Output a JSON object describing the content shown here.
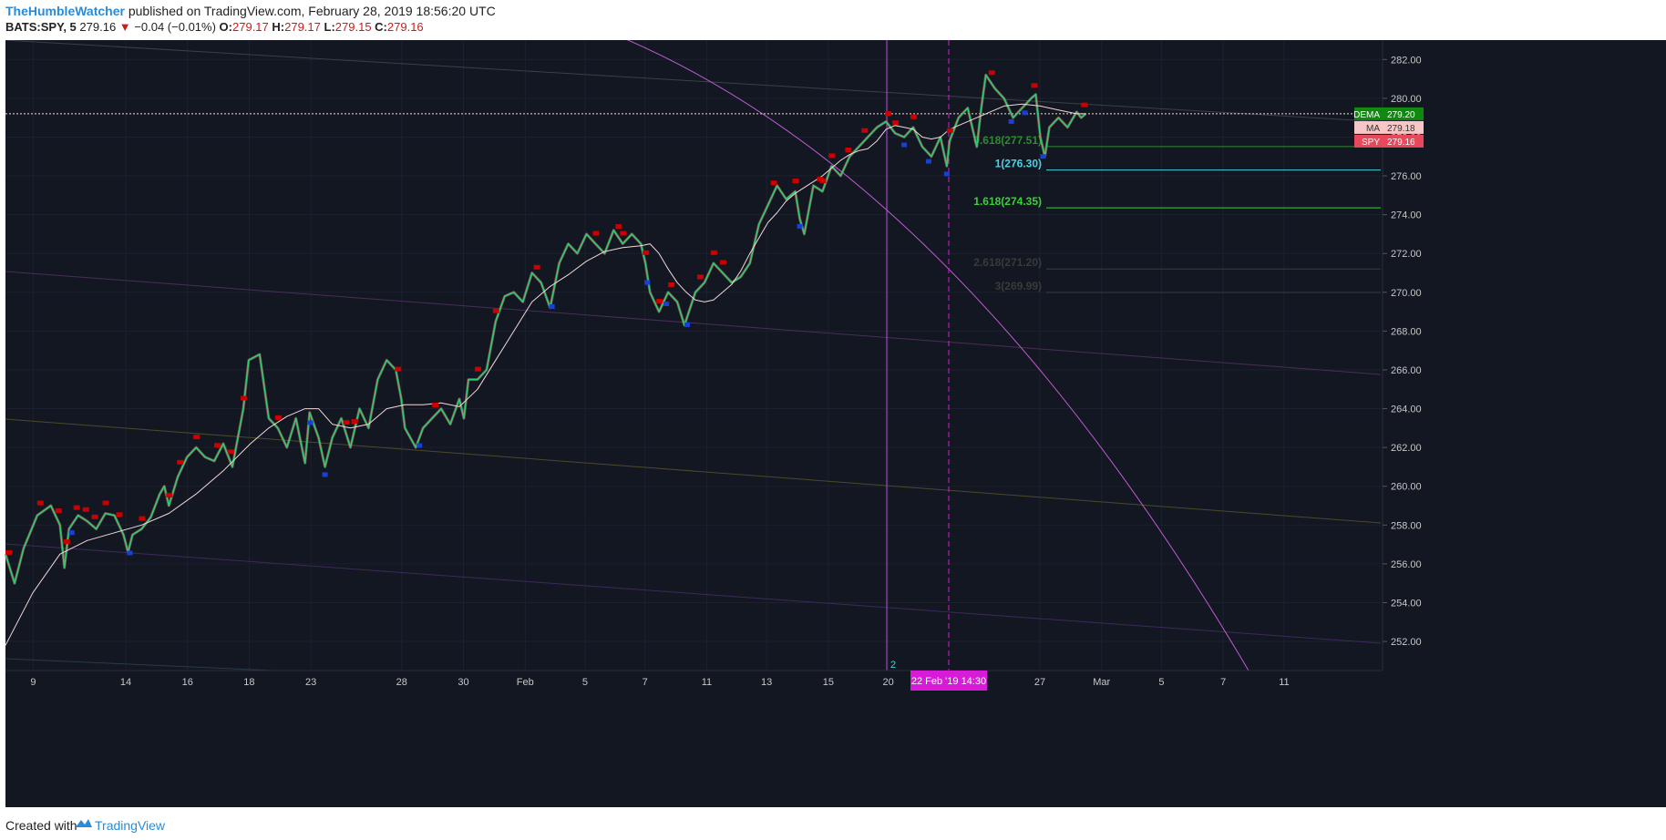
{
  "header": {
    "author": "TheHumbleWatcher",
    "published_text": "published on TradingView.com, February 28, 2019 18:56:20 UTC",
    "symbol": "BATS:SPY, 5",
    "last": "279.16",
    "change": "−0.04 (−0.01%)",
    "open_label": "O:",
    "open": "279.17",
    "high_label": "H:",
    "high": "279.17",
    "low_label": "L:",
    "low": "279.15",
    "close_label": "C:",
    "close": "279.16"
  },
  "footer": {
    "created_with": "Created with",
    "brand": "TradingView"
  },
  "colors": {
    "background": "#131722",
    "price_up": "#2ecc71",
    "price_down": "#e57373",
    "ma_line": "#f2d8d8",
    "dema_badge": "#0f8a0f",
    "ma_badge": "#f7c6c6",
    "spy_badge": "#e8495a",
    "fib_0618": "#2e8b2e",
    "fib_1": "#4dd0e1",
    "fib_1618": "#3ad03a",
    "fib_2618": "#3a3a3a",
    "fib_3": "#3a3a3a",
    "vertical_line": "#b84fd6",
    "curve": "#c05bd6",
    "date_highlight": "#d81bd8",
    "top_marker": "#cc0000",
    "bottom_marker": "#1a3fd6"
  },
  "chart_data": {
    "type": "line",
    "symbol": "BATS:SPY",
    "interval": "5",
    "ylim": [
      250.5,
      283.0
    ],
    "y_ticks": [
      "282.00",
      "280.00",
      "278.00",
      "276.00",
      "274.00",
      "272.00",
      "270.00",
      "268.00",
      "266.00",
      "264.00",
      "262.00",
      "260.00",
      "258.00",
      "256.00",
      "254.00",
      "252.00"
    ],
    "x_ticks": [
      {
        "label": "9",
        "t": 30.5
      },
      {
        "label": "14",
        "t": 132.5
      },
      {
        "label": "16",
        "t": 200.5
      },
      {
        "label": "18",
        "t": 268.5
      },
      {
        "label": "23",
        "t": 336.5
      },
      {
        "label": "28",
        "t": 436.5
      },
      {
        "label": "30",
        "t": 504.5
      },
      {
        "label": "Feb",
        "t": 572.5
      },
      {
        "label": "5",
        "t": 638.5
      },
      {
        "label": "7",
        "t": 704.5
      },
      {
        "label": "11",
        "t": 772.5
      },
      {
        "label": "13",
        "t": 838.5
      },
      {
        "label": "15",
        "t": 906.5
      },
      {
        "label": "20",
        "t": 972.5
      },
      {
        "label": "27",
        "t": 1139.5
      },
      {
        "label": "Mar",
        "t": 1207.5
      },
      {
        "label": "5",
        "t": 1273.5
      },
      {
        "label": "7",
        "t": 1341.5
      },
      {
        "label": "11",
        "t": 1408.5
      }
    ],
    "x_domain": [
      0,
      1515
    ],
    "series": [
      {
        "name": "SPY",
        "values_t": [
          0,
          10,
          20,
          35,
          50,
          60,
          65,
          70,
          80,
          90,
          100,
          110,
          120,
          130,
          135,
          140,
          150,
          160,
          170,
          175,
          180,
          190,
          200,
          210,
          220,
          230,
          240,
          250,
          262,
          268,
          280,
          290,
          300,
          310,
          320,
          330,
          335,
          345,
          352,
          360,
          370,
          380,
          390,
          400,
          410,
          420,
          430,
          436,
          440,
          452,
          460,
          470,
          480,
          490,
          500,
          505,
          510,
          520,
          530,
          540,
          550,
          560,
          570,
          580,
          590,
          600,
          610,
          620,
          630,
          640,
          650,
          660,
          670,
          680,
          690,
          700,
          705,
          710,
          720,
          730,
          740,
          748,
          760,
          770,
          780,
          790,
          800,
          810,
          820,
          830,
          840,
          850,
          860,
          870,
          875,
          880,
          890,
          900,
          910,
          920,
          930,
          940,
          950,
          960,
          970,
          980,
          990,
          1000,
          1010,
          1020,
          1030,
          1037,
          1040,
          1050,
          1060,
          1070,
          1075,
          1080,
          1090,
          1100,
          1110,
          1120,
          1130,
          1135,
          1140,
          1145,
          1150,
          1160,
          1170,
          1180,
          1185,
          1190
        ],
        "values": [
          256.5,
          255.0,
          256.8,
          258.5,
          259.0,
          258.0,
          255.8,
          257.8,
          258.5,
          258.2,
          257.8,
          258.6,
          258.5,
          257.5,
          256.6,
          257.5,
          257.8,
          258.4,
          259.6,
          260.0,
          259.0,
          260.5,
          261.5,
          262.0,
          261.5,
          261.3,
          262.2,
          261.0,
          264.0,
          266.5,
          266.8,
          263.5,
          263.0,
          262.0,
          263.5,
          261.2,
          263.8,
          262.5,
          261.0,
          262.5,
          263.5,
          262.0,
          264.0,
          263.0,
          265.5,
          266.5,
          266.0,
          264.5,
          263.0,
          262.0,
          263.0,
          263.5,
          264.0,
          263.2,
          264.5,
          263.5,
          265.5,
          265.5,
          266.0,
          268.5,
          269.8,
          270.0,
          269.5,
          271.0,
          270.5,
          269.2,
          271.5,
          272.5,
          272.0,
          273.0,
          272.5,
          272.0,
          273.2,
          272.5,
          273.0,
          272.5,
          271.5,
          270.0,
          269.0,
          270.0,
          269.5,
          268.3,
          270.0,
          270.5,
          271.5,
          271.0,
          270.5,
          270.8,
          271.5,
          273.5,
          274.5,
          275.5,
          274.8,
          275.2,
          273.8,
          273.0,
          275.5,
          275.2,
          276.5,
          276.0,
          277.0,
          277.5,
          278.0,
          278.5,
          278.8,
          278.2,
          278.0,
          278.5,
          277.5,
          277.0,
          278.0,
          276.5,
          277.8,
          279.0,
          279.5,
          277.5,
          279.5,
          281.2,
          280.5,
          280.0,
          279.0,
          279.5,
          280.0,
          280.2,
          278.0,
          277.0,
          278.5,
          279.0,
          278.5,
          279.3,
          279.0,
          279.2
        ]
      },
      {
        "name": "MA",
        "values_t": [
          0,
          30,
          60,
          90,
          120,
          150,
          180,
          210,
          240,
          270,
          290,
          310,
          330,
          345,
          360,
          380,
          400,
          420,
          440,
          460,
          480,
          500,
          520,
          540,
          560,
          580,
          600,
          620,
          640,
          660,
          680,
          700,
          710,
          720,
          730,
          740,
          750,
          760,
          770,
          780,
          790,
          800,
          810,
          820,
          830,
          840,
          850,
          860,
          870,
          880,
          890,
          900,
          910,
          920,
          930,
          940,
          950,
          960,
          970,
          980,
          990,
          1000,
          1010,
          1020,
          1030,
          1040,
          1060,
          1080,
          1100,
          1120,
          1140,
          1160,
          1180,
          1190
        ],
        "values": [
          251.8,
          254.5,
          256.5,
          257.2,
          257.6,
          258.0,
          258.6,
          259.6,
          260.8,
          262.2,
          263.0,
          263.6,
          264.0,
          264.0,
          263.2,
          263.0,
          263.2,
          264.0,
          264.2,
          264.2,
          264.3,
          264.1,
          265.0,
          266.5,
          268.0,
          269.5,
          270.3,
          270.9,
          271.6,
          272.1,
          272.3,
          272.4,
          272.5,
          272.0,
          271.2,
          270.5,
          270.0,
          269.6,
          269.5,
          269.6,
          270.0,
          270.4,
          271.1,
          272.0,
          272.8,
          273.6,
          274.1,
          274.7,
          275.1,
          275.4,
          275.7,
          276.0,
          276.4,
          276.8,
          277.1,
          277.3,
          277.4,
          277.8,
          278.4,
          278.6,
          278.5,
          278.4,
          278.0,
          277.9,
          278.0,
          278.4,
          278.8,
          279.2,
          279.6,
          279.7,
          279.6,
          279.4,
          279.2,
          279.2
        ]
      }
    ],
    "price_labels": [
      {
        "name": "DEMA",
        "value": "279.20"
      },
      {
        "name": "MA",
        "value": "279.18"
      },
      {
        "name": "SPY",
        "value": "279.16"
      }
    ],
    "fib_levels": [
      {
        "label": "0.618(277.51)",
        "value": 277.51,
        "color": "#2e8b2e"
      },
      {
        "label": "1(276.30)",
        "value": 276.3,
        "color": "#4dd0e1"
      },
      {
        "label": "1.618(274.35)",
        "value": 274.35,
        "color": "#3ad03a"
      },
      {
        "label": "2.618(271.20)",
        "value": 271.2,
        "color": "#3a3a3a"
      },
      {
        "label": "3(269.99)",
        "value": 269.99,
        "color": "#3a3a3a"
      }
    ],
    "top_markers_t": [
      3,
      38,
      58,
      67,
      78,
      88,
      98,
      110,
      125,
      150,
      180,
      192,
      210,
      233,
      248,
      262,
      300,
      375,
      384,
      432,
      473,
      520,
      540,
      585,
      650,
      675,
      680,
      705,
      720,
      733,
      765,
      780,
      790,
      846,
      870,
      897,
      900,
      910,
      928,
      946,
      972,
      980,
      1000,
      1040,
      1086,
      1133,
      1188
    ],
    "bottom_markers_t": [
      73,
      137,
      336,
      352,
      456,
      602,
      707,
      728,
      751,
      875,
      990,
      1017,
      1037,
      1108,
      1123,
      1143
    ],
    "vertical_marker_label": "2",
    "date_highlight_label": "22 Feb '19   14:30",
    "horizontal_price": 279.2
  }
}
